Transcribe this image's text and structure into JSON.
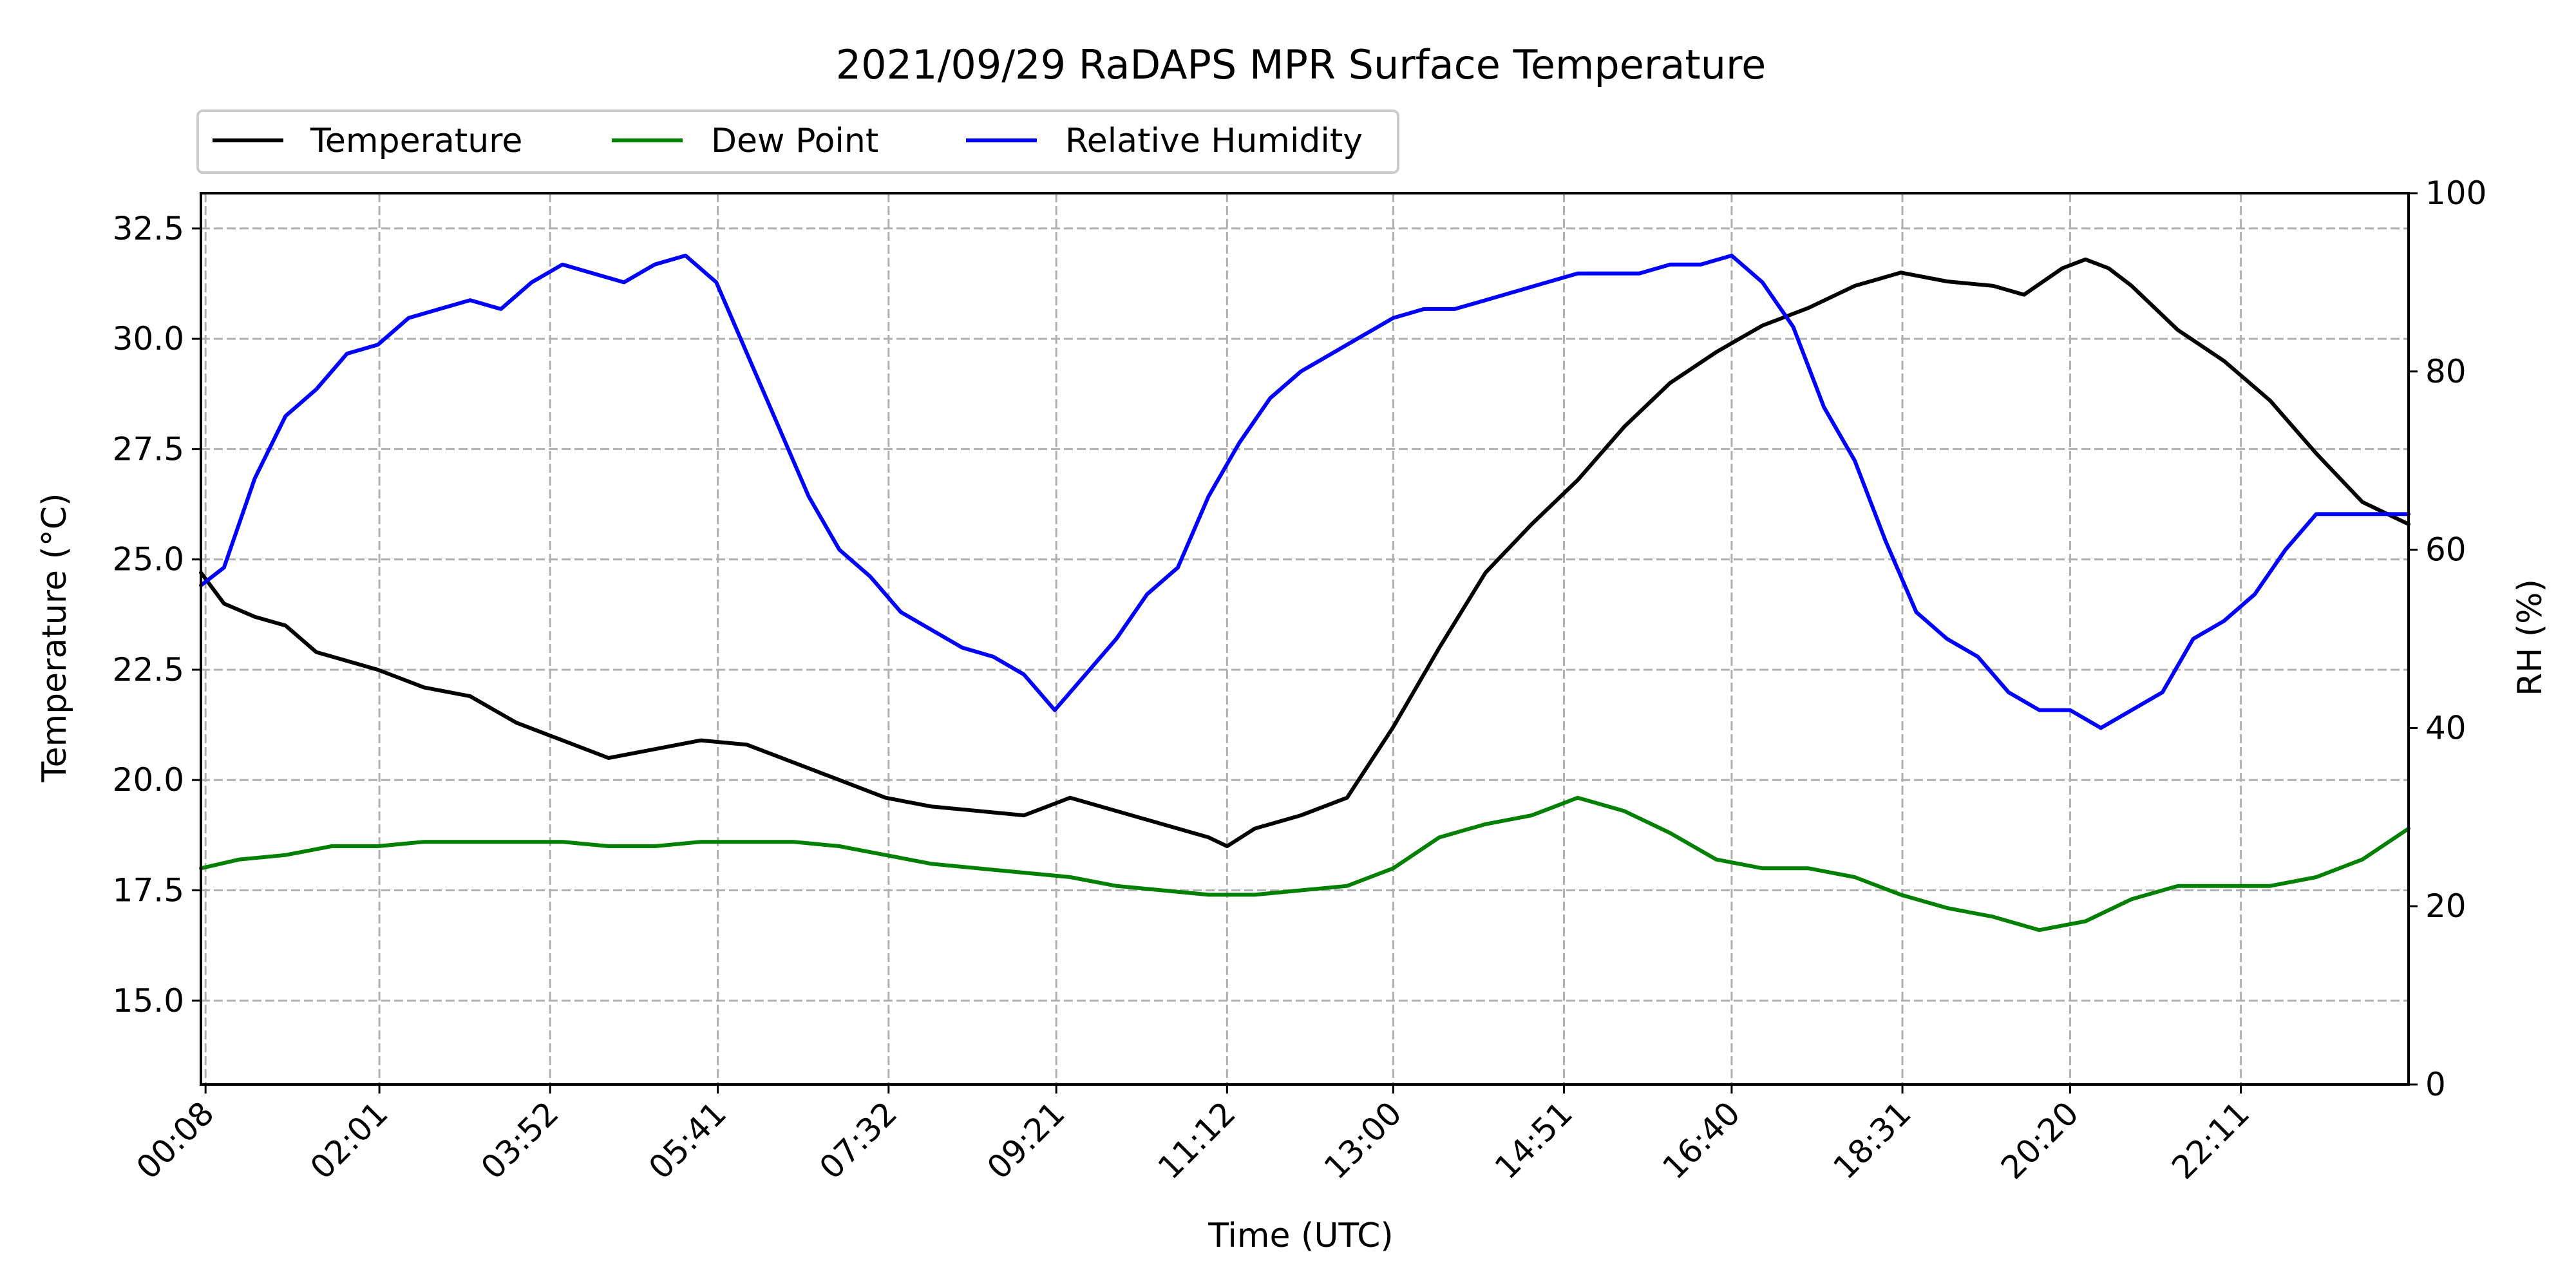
{
  "chart_data": {
    "type": "line",
    "title": "2021/09/29 RaDAPS MPR Surface Temperature",
    "xlabel": "Time (UTC)",
    "ylabel_left": "Temperature ($^\\circ$C)",
    "ylabel_left_display": "Temperature (°C)",
    "ylabel_right": "RH (%)",
    "grid": true,
    "legend_placement": "top-left, above plot",
    "x_range_minutes": [
      5,
      1440
    ],
    "x_tick_labels": [
      "00:08",
      "02:01",
      "03:52",
      "05:41",
      "07:32",
      "09:21",
      "11:12",
      "13:00",
      "14:51",
      "16:40",
      "18:31",
      "20:20",
      "22:11"
    ],
    "x_tick_minutes": [
      8,
      121,
      232,
      341,
      452,
      561,
      672,
      780,
      891,
      1000,
      1111,
      1220,
      1331
    ],
    "ylim_left": [
      13.1,
      33.3
    ],
    "y_ticks_left": [
      "15.0",
      "17.5",
      "20.0",
      "22.5",
      "25.0",
      "27.5",
      "30.0",
      "32.5"
    ],
    "ylim_right": [
      0,
      100
    ],
    "y_ticks_right": [
      "0",
      "20",
      "40",
      "60",
      "80",
      "100"
    ],
    "series": [
      {
        "name": "Temperature",
        "axis": "left",
        "color": "#000000",
        "x_minutes": [
          5,
          20,
          40,
          60,
          80,
          100,
          120,
          150,
          180,
          210,
          240,
          270,
          300,
          330,
          360,
          390,
          420,
          450,
          480,
          510,
          540,
          555,
          570,
          600,
          630,
          660,
          672,
          690,
          720,
          750,
          780,
          810,
          840,
          870,
          900,
          930,
          960,
          990,
          1020,
          1050,
          1080,
          1110,
          1140,
          1170,
          1190,
          1215,
          1230,
          1245,
          1260,
          1290,
          1320,
          1350,
          1380,
          1410,
          1440
        ],
        "values": [
          24.7,
          24.0,
          23.7,
          23.5,
          22.9,
          22.7,
          22.5,
          22.1,
          21.9,
          21.3,
          20.9,
          20.5,
          20.7,
          20.9,
          20.8,
          20.4,
          20.0,
          19.6,
          19.4,
          19.3,
          19.2,
          19.4,
          19.6,
          19.3,
          19.0,
          18.7,
          18.5,
          18.9,
          19.2,
          19.6,
          21.2,
          23.0,
          24.7,
          25.8,
          26.8,
          28.0,
          29.0,
          29.7,
          30.3,
          30.7,
          31.2,
          31.5,
          31.3,
          31.2,
          31.0,
          31.6,
          31.8,
          31.6,
          31.2,
          30.2,
          29.5,
          28.6,
          27.4,
          26.3,
          25.8
        ]
      },
      {
        "name": "Dew Point",
        "axis": "left",
        "color": "#008000",
        "x_minutes": [
          5,
          30,
          60,
          90,
          120,
          150,
          180,
          210,
          240,
          270,
          300,
          330,
          360,
          390,
          420,
          450,
          480,
          510,
          540,
          570,
          600,
          630,
          660,
          690,
          720,
          750,
          780,
          810,
          840,
          870,
          900,
          930,
          960,
          990,
          1020,
          1050,
          1080,
          1110,
          1140,
          1170,
          1200,
          1230,
          1260,
          1290,
          1320,
          1350,
          1380,
          1410,
          1440
        ],
        "values": [
          18.0,
          18.2,
          18.3,
          18.5,
          18.5,
          18.6,
          18.6,
          18.6,
          18.6,
          18.5,
          18.5,
          18.6,
          18.6,
          18.6,
          18.5,
          18.3,
          18.1,
          18.0,
          17.9,
          17.8,
          17.6,
          17.5,
          17.4,
          17.4,
          17.5,
          17.6,
          18.0,
          18.7,
          19.0,
          19.2,
          19.6,
          19.3,
          18.8,
          18.2,
          18.0,
          18.0,
          17.8,
          17.4,
          17.1,
          16.9,
          16.6,
          16.8,
          17.3,
          17.6,
          17.6,
          17.6,
          17.8,
          18.2,
          18.9
        ]
      },
      {
        "name": "Relative Humidity",
        "axis": "right",
        "color": "#0000ff",
        "x_minutes": [
          5,
          20,
          40,
          60,
          80,
          100,
          120,
          140,
          160,
          180,
          200,
          220,
          240,
          260,
          280,
          300,
          320,
          340,
          360,
          380,
          400,
          420,
          440,
          460,
          480,
          500,
          520,
          540,
          560,
          580,
          600,
          620,
          640,
          660,
          680,
          700,
          720,
          740,
          760,
          780,
          800,
          820,
          840,
          860,
          880,
          900,
          920,
          940,
          960,
          980,
          1000,
          1020,
          1040,
          1060,
          1080,
          1100,
          1120,
          1140,
          1160,
          1180,
          1200,
          1220,
          1240,
          1260,
          1280,
          1300,
          1320,
          1340,
          1360,
          1380,
          1400,
          1420,
          1440
        ],
        "values": [
          56,
          58,
          68,
          75,
          78,
          82,
          83,
          86,
          87,
          88,
          87,
          90,
          92,
          91,
          90,
          92,
          93,
          90,
          82,
          74,
          66,
          60,
          57,
          53,
          51,
          49,
          48,
          46,
          42,
          46,
          50,
          55,
          58,
          66,
          72,
          77,
          80,
          82,
          84,
          86,
          87,
          87,
          88,
          89,
          90,
          91,
          91,
          91,
          92,
          92,
          93,
          90,
          85,
          76,
          70,
          61,
          53,
          50,
          48,
          44,
          42,
          42,
          40,
          42,
          44,
          50,
          52,
          55,
          60,
          64,
          64,
          64,
          64
        ]
      }
    ]
  }
}
